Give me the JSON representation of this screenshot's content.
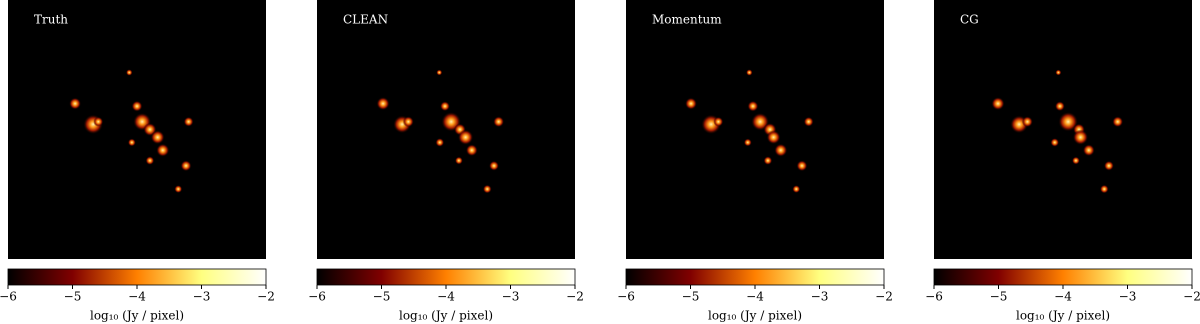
{
  "chart_data": [
    {
      "type": "image",
      "title": "Truth",
      "colormap": "afmhot",
      "colorbar_label": "log₁₀ (Jy / pixel)",
      "xlim": [
        -6,
        -2
      ],
      "xticks": [
        {
          "value": -6,
          "label": "−6"
        },
        {
          "value": -5,
          "label": "−5"
        },
        {
          "value": -4,
          "label": "−4"
        },
        {
          "value": -3,
          "label": "−3"
        },
        {
          "value": -2,
          "label": "−2"
        }
      ]
    },
    {
      "type": "image",
      "title": "CLEAN",
      "colormap": "afmhot",
      "colorbar_label": "log₁₀ (Jy / pixel)",
      "xlim": [
        -6,
        -2
      ],
      "xticks": [
        {
          "value": -6,
          "label": "−6"
        },
        {
          "value": -5,
          "label": "−5"
        },
        {
          "value": -4,
          "label": "−4"
        },
        {
          "value": -3,
          "label": "−3"
        },
        {
          "value": -2,
          "label": "−2"
        }
      ]
    },
    {
      "type": "image",
      "title": "Momentum",
      "colormap": "afmhot",
      "colorbar_label": "log₁₀ (Jy / pixel)",
      "xlim": [
        -6,
        -2
      ],
      "xticks": [
        {
          "value": -6,
          "label": "−6"
        },
        {
          "value": -5,
          "label": "−5"
        },
        {
          "value": -4,
          "label": "−4"
        },
        {
          "value": -3,
          "label": "−3"
        },
        {
          "value": -2,
          "label": "−2"
        }
      ]
    },
    {
      "type": "image",
      "title": "CG",
      "colormap": "afmhot",
      "colorbar_label": "log₁₀ (Jy / pixel)",
      "xlim": [
        -6,
        -2
      ],
      "xticks": [
        {
          "value": -6,
          "label": "−6"
        },
        {
          "value": -5,
          "label": "−5"
        },
        {
          "value": -4,
          "label": "−4"
        },
        {
          "value": -3,
          "label": "−3"
        },
        {
          "value": -2,
          "label": "−2"
        }
      ]
    }
  ]
}
